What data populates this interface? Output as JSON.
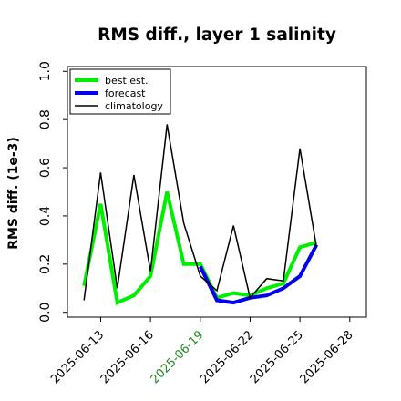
{
  "chart_data": {
    "type": "line",
    "title": "RMS diff., layer 1 salinity",
    "xlabel": "",
    "ylabel": "RMS diff. (1e-3)",
    "ylim": [
      -0.02,
      1.02
    ],
    "xlim": [
      "2025-06-11",
      "2025-06-29"
    ],
    "y_ticks": [
      0.0,
      0.2,
      0.4,
      0.6,
      0.8,
      1.0
    ],
    "y_tick_labels": [
      "0.0",
      "0.2",
      "0.4",
      "0.6",
      "0.8",
      "1.0"
    ],
    "x_ticks": [
      "2025-06-13",
      "2025-06-16",
      "2025-06-19",
      "2025-06-22",
      "2025-06-25",
      "2025-06-28"
    ],
    "x_tick_labels": [
      "2025-06-13",
      "2025-06-16",
      "2025-06-19",
      "2025-06-22",
      "2025-06-25",
      "2025-06-28"
    ],
    "x_tick_colors": [
      "#000000",
      "#000000",
      "#228b22",
      "#000000",
      "#000000",
      "#000000"
    ],
    "grid": false,
    "legend_position": "top-left",
    "series": [
      {
        "name": "best est.",
        "color": "#00ee00",
        "x": [
          "2025-06-12",
          "2025-06-13",
          "2025-06-14",
          "2025-06-15",
          "2025-06-16",
          "2025-06-17",
          "2025-06-18",
          "2025-06-19",
          "2025-06-20",
          "2025-06-21",
          "2025-06-22",
          "2025-06-23",
          "2025-06-24",
          "2025-06-25",
          "2025-06-26"
        ],
        "values": [
          0.11,
          0.45,
          0.04,
          0.07,
          0.15,
          0.5,
          0.2,
          0.2,
          0.06,
          0.08,
          0.07,
          0.1,
          0.12,
          0.27,
          0.29
        ]
      },
      {
        "name": "forecast",
        "color": "#0000ee",
        "x": [
          "2025-06-19",
          "2025-06-20",
          "2025-06-21",
          "2025-06-22",
          "2025-06-23",
          "2025-06-24",
          "2025-06-25",
          "2025-06-26"
        ],
        "values": [
          0.19,
          0.05,
          0.04,
          0.06,
          0.07,
          0.1,
          0.15,
          0.28
        ]
      },
      {
        "name": "climatology",
        "color": "#000000",
        "x": [
          "2025-06-12",
          "2025-06-13",
          "2025-06-14",
          "2025-06-15",
          "2025-06-16",
          "2025-06-17",
          "2025-06-18",
          "2025-06-19",
          "2025-06-20",
          "2025-06-21",
          "2025-06-22",
          "2025-06-23",
          "2025-06-24",
          "2025-06-25",
          "2025-06-26"
        ],
        "values": [
          0.05,
          0.58,
          0.1,
          0.57,
          0.17,
          0.78,
          0.37,
          0.15,
          0.09,
          0.36,
          0.06,
          0.14,
          0.13,
          0.68,
          0.27
        ]
      }
    ]
  }
}
